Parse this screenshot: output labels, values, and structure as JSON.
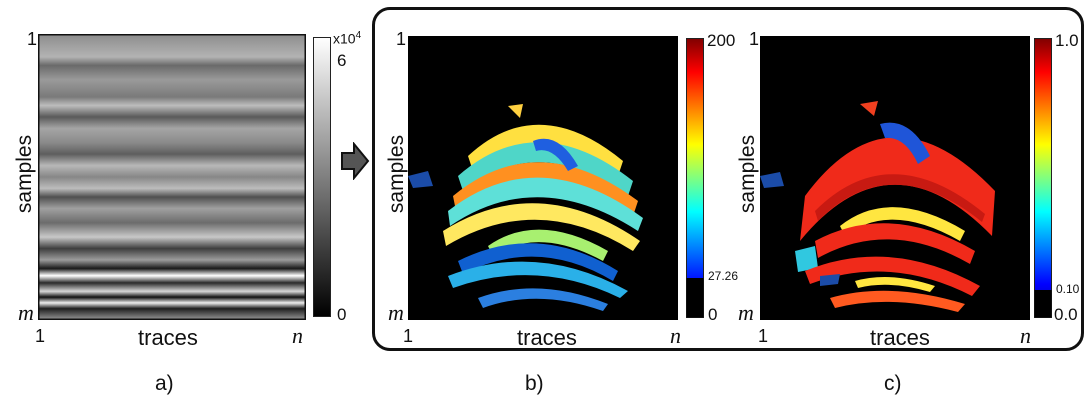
{
  "panels": [
    {
      "id": "a",
      "caption": "a)",
      "y_label": "samples",
      "x_label": "traces",
      "y_top": "1",
      "y_bottom": "m",
      "x_left": "1",
      "x_right": "n",
      "colorbar": {
        "exponent": "x10",
        "exponent_power": "4",
        "max_label": "6",
        "min_label": "0",
        "colors": [
          "#000000",
          "#ffffff"
        ]
      }
    },
    {
      "id": "b",
      "caption": "b)",
      "y_label": "samples",
      "x_label": "traces",
      "y_top": "1",
      "y_bottom": "m",
      "x_left": "1",
      "x_right": "n",
      "colorbar": {
        "max_label": "200",
        "threshold_label": "27.26",
        "min_label": "0",
        "colors": [
          "#00008f",
          "#0000ff",
          "#00ffff",
          "#ffff00",
          "#ff0000",
          "#800000"
        ]
      }
    },
    {
      "id": "c",
      "caption": "c)",
      "y_label": "samples",
      "x_label": "traces",
      "y_top": "1",
      "y_bottom": "m",
      "x_left": "1",
      "x_right": "n",
      "colorbar": {
        "max_label": "1.0",
        "threshold_label": "0.10",
        "min_label": "0.0",
        "colors": [
          "#00008f",
          "#0000ff",
          "#00ffff",
          "#ffff00",
          "#ff0000",
          "#800000"
        ]
      }
    }
  ]
}
